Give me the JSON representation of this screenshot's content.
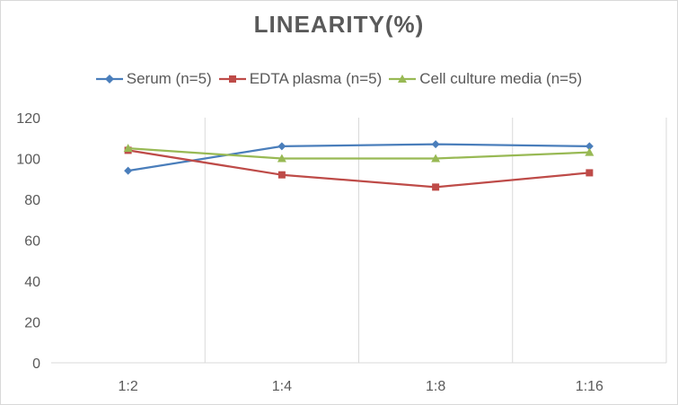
{
  "chart_data": {
    "type": "line",
    "title": "LINEARITY(%)",
    "xlabel": "",
    "ylabel": "",
    "categories": [
      "1:2",
      "1:4",
      "1:8",
      "1:16"
    ],
    "ylim": [
      0,
      120
    ],
    "yticks": [
      0,
      20,
      40,
      60,
      80,
      100,
      120
    ],
    "grid": "vertical",
    "legend_position": "top",
    "series": [
      {
        "name": "Serum (n=5)",
        "values": [
          94,
          106,
          107,
          106
        ],
        "color": "#4a7ebb",
        "marker": "diamond"
      },
      {
        "name": "EDTA plasma (n=5)",
        "values": [
          104,
          92,
          86,
          93
        ],
        "color": "#be4b48",
        "marker": "square"
      },
      {
        "name": "Cell culture media (n=5)",
        "values": [
          105,
          100,
          100,
          103
        ],
        "color": "#98b954",
        "marker": "triangle"
      }
    ]
  }
}
